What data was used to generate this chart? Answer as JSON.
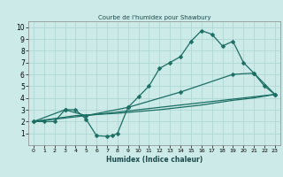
{
  "title": "Courbe de l'humidex pour Shawbury",
  "xlabel": "Humidex (Indice chaleur)",
  "xlim": [
    -0.5,
    23.5
  ],
  "ylim": [
    0,
    10.5
  ],
  "xticks": [
    0,
    1,
    2,
    3,
    4,
    5,
    6,
    7,
    8,
    9,
    10,
    11,
    12,
    13,
    14,
    15,
    16,
    17,
    18,
    19,
    20,
    21,
    22,
    23
  ],
  "yticks": [
    1,
    2,
    3,
    4,
    5,
    6,
    7,
    8,
    9,
    10
  ],
  "bg_color": "#cceae8",
  "grid_color": "#aad4d0",
  "line_color": "#1a6e64",
  "line1_x": [
    0,
    1,
    2,
    3,
    4,
    5,
    6,
    7,
    7.5,
    8,
    9,
    10,
    11,
    12,
    13,
    14,
    15,
    16,
    17,
    18,
    19,
    20,
    21,
    22,
    23
  ],
  "line1_y": [
    2.0,
    2.0,
    2.0,
    3.0,
    3.0,
    2.2,
    0.8,
    0.75,
    0.8,
    1.0,
    3.2,
    4.1,
    5.0,
    6.5,
    7.0,
    7.5,
    8.8,
    9.7,
    9.4,
    8.4,
    8.8,
    7.0,
    6.1,
    5.0,
    4.3
  ],
  "line2_x": [
    0,
    23
  ],
  "line2_y": [
    2.0,
    4.3
  ],
  "line3_x": [
    0,
    4,
    8,
    12,
    16,
    19,
    21,
    23
  ],
  "line3_y": [
    2.0,
    2.5,
    2.7,
    3.0,
    3.4,
    3.8,
    4.0,
    4.3
  ],
  "line4_x": [
    0,
    3,
    5,
    9,
    14,
    19,
    21,
    23
  ],
  "line4_y": [
    2.0,
    3.0,
    2.5,
    3.2,
    4.5,
    6.0,
    6.1,
    4.3
  ],
  "lw": 0.9,
  "ms": 2.5
}
